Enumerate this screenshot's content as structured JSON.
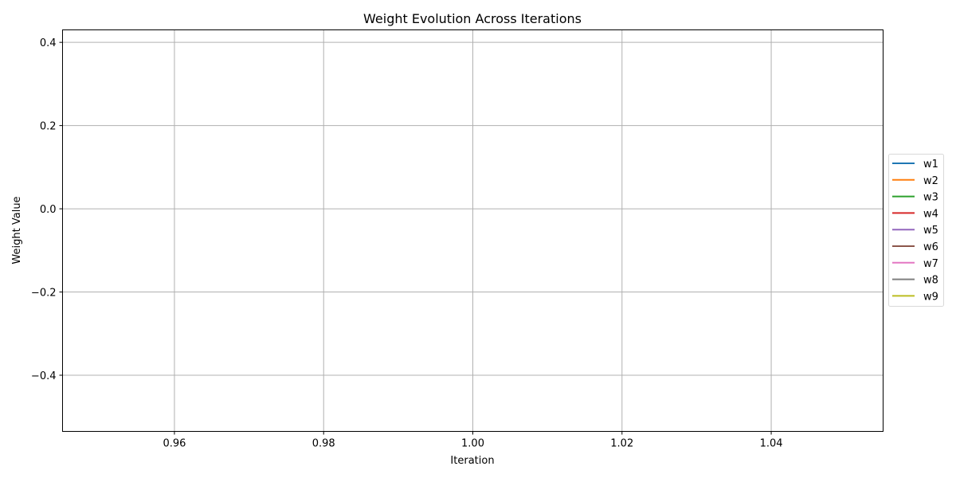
{
  "chart_data": {
    "type": "line",
    "title": "Weight Evolution Across Iterations",
    "xlabel": "Iteration",
    "ylabel": "Weight Value",
    "xlim": [
      0.945,
      1.055
    ],
    "ylim": [
      -0.535,
      0.43
    ],
    "x_ticks": [
      0.96,
      0.98,
      1.0,
      1.02,
      1.04
    ],
    "x_tick_labels": [
      "0.96",
      "0.98",
      "1.00",
      "1.02",
      "1.04"
    ],
    "y_ticks": [
      -0.4,
      -0.2,
      0.0,
      0.2,
      0.4
    ],
    "y_tick_labels": [
      "−0.4",
      "−0.2",
      "0.0",
      "0.2",
      "0.4"
    ],
    "grid": true,
    "legend_position": "center-right-outside",
    "series": [
      {
        "name": "w1",
        "color": "#1f77b4",
        "x": [],
        "y": []
      },
      {
        "name": "w2",
        "color": "#ff7f0e",
        "x": [],
        "y": []
      },
      {
        "name": "w3",
        "color": "#2ca02c",
        "x": [],
        "y": []
      },
      {
        "name": "w4",
        "color": "#d62728",
        "x": [],
        "y": []
      },
      {
        "name": "w5",
        "color": "#9467bd",
        "x": [],
        "y": []
      },
      {
        "name": "w6",
        "color": "#8c564b",
        "x": [],
        "y": []
      },
      {
        "name": "w7",
        "color": "#e377c2",
        "x": [],
        "y": []
      },
      {
        "name": "w8",
        "color": "#7f7f7f",
        "x": [],
        "y": []
      },
      {
        "name": "w9",
        "color": "#bcbd22",
        "x": [],
        "y": []
      }
    ]
  }
}
